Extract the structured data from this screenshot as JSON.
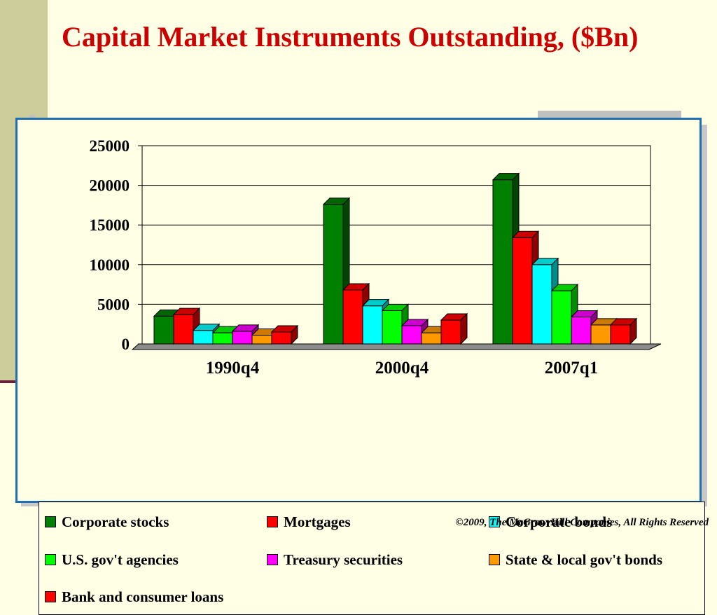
{
  "slide": {
    "title": "Capital Market Instruments Outstanding, ($Bn)",
    "footer": "©2009, The McGraw-Hill Companies, All Rights Reserved"
  },
  "chart_data": {
    "type": "bar",
    "style": "3d-clustered",
    "categories": [
      "1990q4",
      "2000q4",
      "2007q1"
    ],
    "ylim": [
      0,
      25000
    ],
    "yticks": [
      0,
      5000,
      10000,
      15000,
      20000,
      25000
    ],
    "grid": true,
    "legend_position": "bottom",
    "series": [
      {
        "name": "Corporate stocks",
        "color": "#008000",
        "values": [
          3500,
          17600,
          20700
        ]
      },
      {
        "name": "Mortgages",
        "color": "#ff0000",
        "values": [
          3700,
          6800,
          13400
        ]
      },
      {
        "name": "Corporate bonds",
        "color": "#00ffff",
        "values": [
          1700,
          4800,
          10000
        ]
      },
      {
        "name": "U.S. gov't agencies",
        "color": "#00ff00",
        "values": [
          1400,
          4200,
          6700
        ]
      },
      {
        "name": "Treasury securities",
        "color": "#ff00ff",
        "values": [
          1600,
          2300,
          3400
        ]
      },
      {
        "name": "State & local gov't bonds",
        "color": "#ff9900",
        "values": [
          1100,
          1400,
          2400
        ]
      },
      {
        "name": "Bank and consumer loans",
        "color": "#ff0000",
        "values": [
          1500,
          3000,
          2400
        ]
      }
    ]
  }
}
